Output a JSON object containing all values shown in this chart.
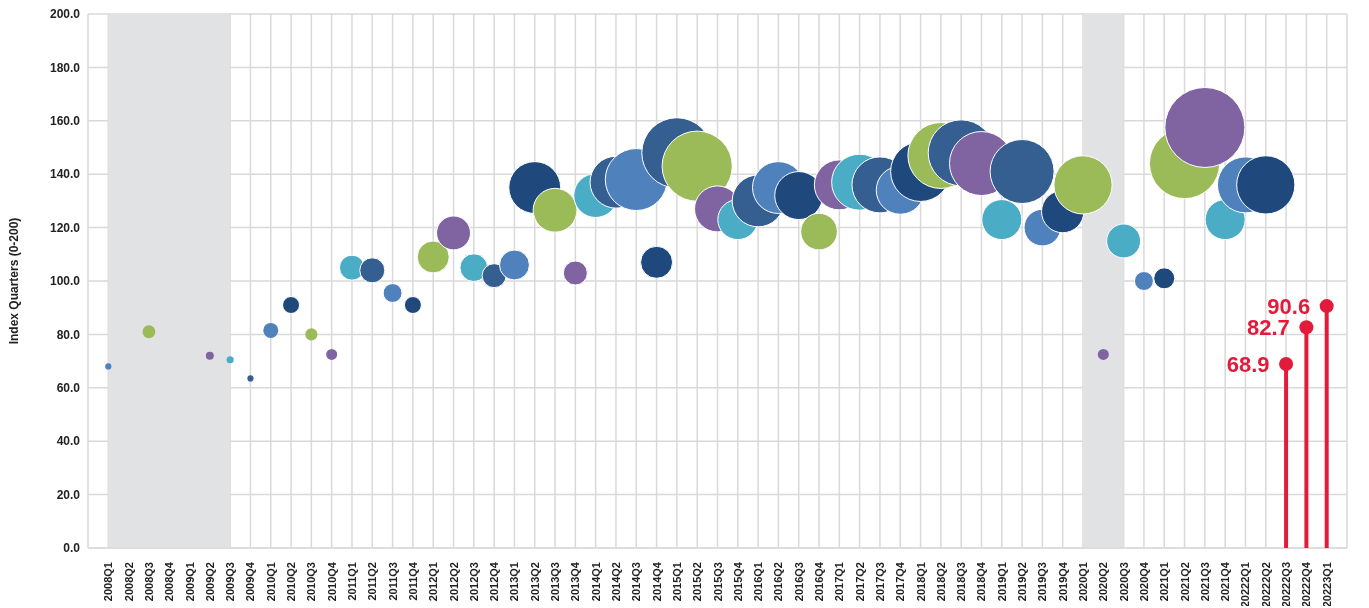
{
  "chart_data": {
    "type": "bubble",
    "ylabel": "Index Quarters (0-200)",
    "categories": [
      "2008Q1",
      "2008Q2",
      "2008Q3",
      "2008Q4",
      "2009Q1",
      "2009Q2",
      "2009Q3",
      "2009Q4",
      "2010Q1",
      "2010Q2",
      "2010Q3",
      "2010Q4",
      "2011Q1",
      "2011Q2",
      "2011Q3",
      "2011Q4",
      "2012Q1",
      "2012Q2",
      "2012Q3",
      "2012Q4",
      "2013Q1",
      "2013Q2",
      "2013Q3",
      "2013Q4",
      "2014Q1",
      "2014Q2",
      "2014Q3",
      "2014Q4",
      "2015Q1",
      "2015Q2",
      "2015Q3",
      "2015Q4",
      "2016Q1",
      "2016Q2",
      "2016Q3",
      "2016Q4",
      "2017Q1",
      "2017Q2",
      "2017Q3",
      "2017Q4",
      "2018Q1",
      "2018Q2",
      "2018Q3",
      "2018Q4",
      "2019Q1",
      "2019Q2",
      "2019Q3",
      "2019Q4",
      "2020Q1",
      "2020Q2",
      "2020Q3",
      "2020Q4",
      "2021Q1",
      "2021Q2",
      "2021Q3",
      "2021Q4",
      "20222Q1",
      "20222Q2",
      "20222Q3",
      "20222Q4",
      "20223Q1"
    ],
    "series": [
      {
        "type": "bubble",
        "values": [
          68,
          null,
          81,
          null,
          null,
          72,
          70.5,
          63.5,
          81.5,
          91,
          80,
          72.5,
          105,
          104,
          95.5,
          91,
          109,
          118,
          105,
          102,
          106,
          135,
          126.5,
          103,
          132,
          137,
          138,
          107,
          148,
          143,
          127,
          123,
          130,
          135,
          132,
          118.5,
          136,
          137,
          136,
          134,
          141,
          147,
          148,
          144,
          123,
          141,
          120,
          126,
          136,
          72.5,
          115,
          100,
          101,
          144,
          157.5,
          123,
          136,
          136,
          null,
          null,
          null
        ],
        "sizes": [
          0.006,
          null,
          0.026,
          null,
          null,
          0.01,
          0.008,
          0.006,
          0.035,
          0.045,
          0.023,
          0.019,
          0.098,
          0.098,
          0.056,
          0.045,
          0.16,
          0.18,
          0.12,
          0.09,
          0.14,
          0.42,
          0.3,
          0.09,
          0.3,
          0.42,
          0.6,
          0.16,
          0.77,
          0.77,
          0.33,
          0.25,
          0.42,
          0.42,
          0.36,
          0.21,
          0.39,
          0.49,
          0.49,
          0.36,
          0.56,
          0.68,
          0.68,
          0.64,
          0.25,
          0.64,
          0.21,
          0.28,
          0.53,
          0.019,
          0.18,
          0.056,
          0.069,
          0.77,
          1,
          0.25,
          0.49,
          0.53,
          null,
          null,
          null
        ],
        "colors": [
          "#4f81bd",
          null,
          "#9bbb59",
          null,
          null,
          "#8064a2",
          "#4bacc6",
          "#355f91",
          "#4f81bd",
          "#1f497d",
          "#9bbb59",
          "#8064a2",
          "#4bacc6",
          "#355f91",
          "#4f81bd",
          "#1f497d",
          "#9bbb59",
          "#8064a2",
          "#4bacc6",
          "#355f91",
          "#4f81bd",
          "#1f497d",
          "#9bbb59",
          "#8064a2",
          "#4bacc6",
          "#355f91",
          "#4f81bd",
          "#1f497d",
          "#355f91",
          "#9bbb59",
          "#8064a2",
          "#4bacc6",
          "#355f91",
          "#4f81bd",
          "#1f497d",
          "#9bbb59",
          "#8064a2",
          "#4bacc6",
          "#355f91",
          "#4f81bd",
          "#1f497d",
          "#9bbb59",
          "#355f91",
          "#8064a2",
          "#4bacc6",
          "#355f91",
          "#4f81bd",
          "#1f497d",
          "#9bbb59",
          "#8064a2",
          "#4bacc6",
          "#4f81bd",
          "#1f497d",
          "#9bbb59",
          "#8064a2",
          "#4bacc6",
          "#4f81bd",
          "#1f497d",
          null,
          null,
          null
        ]
      },
      {
        "type": "lollipop",
        "color": "#e31b3a",
        "values": [
          null,
          null,
          null,
          null,
          null,
          null,
          null,
          null,
          null,
          null,
          null,
          null,
          null,
          null,
          null,
          null,
          null,
          null,
          null,
          null,
          null,
          null,
          null,
          null,
          null,
          null,
          null,
          null,
          null,
          null,
          null,
          null,
          null,
          null,
          null,
          null,
          null,
          null,
          null,
          null,
          null,
          null,
          null,
          null,
          null,
          null,
          null,
          null,
          null,
          null,
          null,
          null,
          null,
          null,
          null,
          null,
          null,
          null,
          68.9,
          82.7,
          90.6
        ],
        "value_labels": [
          null,
          null,
          null,
          null,
          null,
          null,
          null,
          null,
          null,
          null,
          null,
          null,
          null,
          null,
          null,
          null,
          null,
          null,
          null,
          null,
          null,
          null,
          null,
          null,
          null,
          null,
          null,
          null,
          null,
          null,
          null,
          null,
          null,
          null,
          null,
          null,
          null,
          null,
          null,
          null,
          null,
          null,
          null,
          null,
          null,
          null,
          null,
          null,
          null,
          null,
          null,
          null,
          null,
          null,
          null,
          null,
          null,
          null,
          "68.9",
          "82.7",
          "90.6"
        ]
      }
    ],
    "ylim": [
      0,
      200
    ],
    "yticks": [
      {
        "value": 0,
        "label": "0.0"
      },
      {
        "value": 20,
        "label": "20.0"
      },
      {
        "value": 40,
        "label": "40.0"
      },
      {
        "value": 60,
        "label": "60.0"
      },
      {
        "value": 80,
        "label": "80.0"
      },
      {
        "value": 100,
        "label": "100.0"
      },
      {
        "value": 120,
        "label": "120.0"
      },
      {
        "value": 140,
        "label": "140.0"
      },
      {
        "value": 160,
        "label": "160.0"
      },
      {
        "value": 180,
        "label": "180.0"
      },
      {
        "value": 200,
        "label": "200.0"
      }
    ],
    "bands": [
      {
        "axis": "x",
        "from": "2008Q1",
        "to": "2009Q3",
        "color": "#e1e2e4"
      },
      {
        "axis": "x",
        "from": "2020Q1",
        "to": "2020Q3",
        "color": "#e1e2e4"
      }
    ],
    "grid": true
  }
}
